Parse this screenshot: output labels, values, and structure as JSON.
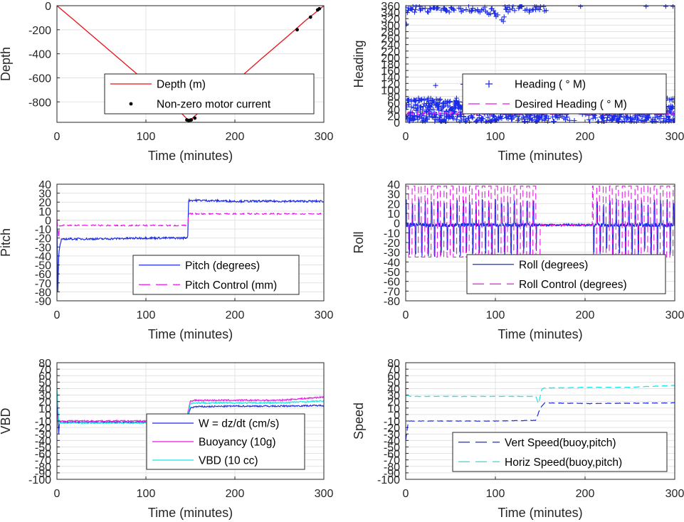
{
  "window_title": "",
  "chart_data": [
    {
      "type": "line",
      "xlabel": "Time (minutes)",
      "ylabel": "Depth",
      "xlim": [
        0,
        300
      ],
      "ylim": [
        -970,
        0
      ],
      "xticks": [
        0,
        100,
        200,
        300
      ],
      "yticks": [
        0,
        -200,
        -400,
        -600,
        -800
      ],
      "grid": true,
      "legend": "center-bottom",
      "series": [
        {
          "name": "Depth (m)",
          "style": "line",
          "color": "#e8131b",
          "x": [
            0,
            20,
            50,
            80,
            110,
            130,
            146,
            150,
            170,
            200,
            230,
            260,
            280,
            296,
            300
          ],
          "y": [
            0,
            -125,
            -315,
            -505,
            -695,
            -820,
            -940,
            -950,
            -820,
            -635,
            -440,
            -250,
            -120,
            -25,
            0
          ]
        },
        {
          "name": "Non-zero motor current",
          "style": "dots",
          "color": "#000000",
          "x": [
            146,
            148,
            150,
            151,
            155,
            270,
            285,
            293,
            295
          ],
          "y": [
            -950,
            -955,
            -952,
            -950,
            -935,
            -200,
            -95,
            -35,
            -25
          ]
        }
      ]
    },
    {
      "type": "scatter",
      "xlabel": "Time (minutes)",
      "ylabel": "Heading",
      "xlim": [
        0,
        300
      ],
      "ylim": [
        0,
        360
      ],
      "xticks": [
        0,
        100,
        200,
        300
      ],
      "yticks": [
        0,
        20,
        40,
        60,
        80,
        100,
        120,
        140,
        160,
        180,
        200,
        220,
        240,
        260,
        280,
        300,
        320,
        340,
        360
      ],
      "grid": true,
      "legend": "right",
      "series": [
        {
          "name": "Heading ( ° M)",
          "style": "plus",
          "color": "#1b2be6"
        },
        {
          "name": "Desired Heading ( ° M)",
          "style": "dash",
          "color": "#e619e6",
          "x": [
            0,
            300
          ],
          "y": [
            28,
            28
          ]
        }
      ]
    },
    {
      "type": "line",
      "xlabel": "Time (minutes)",
      "ylabel": "Pitch",
      "xlim": [
        0,
        300
      ],
      "ylim": [
        -90,
        40
      ],
      "xticks": [
        0,
        100,
        200,
        300
      ],
      "yticks": [
        40,
        30,
        20,
        10,
        0,
        -10,
        -20,
        -30,
        -40,
        -50,
        -60,
        -70,
        -80,
        -90
      ],
      "grid": true,
      "legend": "bottom-right",
      "series": [
        {
          "name": "Pitch (degrees)",
          "style": "line",
          "color": "#1b2be6",
          "x": [
            0,
            1,
            2,
            3,
            5,
            10,
            50,
            100,
            145,
            147,
            148,
            160,
            200,
            250,
            300
          ],
          "y": [
            0,
            -80,
            -40,
            -30,
            -22,
            -21,
            -21,
            -20,
            -20,
            -18,
            22,
            22,
            21,
            21,
            21
          ]
        },
        {
          "name": "Pitch Control (mm)",
          "style": "dash",
          "color": "#e619e6",
          "x": [
            0,
            2,
            3,
            147,
            148,
            300
          ],
          "y": [
            0,
            -20,
            -6,
            -6,
            7,
            7
          ]
        }
      ]
    },
    {
      "type": "line",
      "xlabel": "Time (minutes)",
      "ylabel": "Roll",
      "xlim": [
        0,
        300
      ],
      "ylim": [
        -80,
        40
      ],
      "xticks": [
        0,
        100,
        200,
        300
      ],
      "yticks": [
        40,
        30,
        20,
        10,
        0,
        -10,
        -20,
        -30,
        -40,
        -50,
        -60,
        -70,
        -80
      ],
      "grid": true,
      "legend": "bottom-right",
      "series": [
        {
          "name": "Roll (degrees)",
          "style": "line",
          "color": "#1b2be6"
        },
        {
          "name": "Roll Control (degrees)",
          "style": "dash",
          "color": "#e619e6"
        }
      ]
    },
    {
      "type": "line",
      "xlabel": "Time (minutes)",
      "ylabel": "VBD",
      "xlim": [
        0,
        300
      ],
      "ylim": [
        -100,
        80
      ],
      "xticks": [
        0,
        100,
        200,
        300
      ],
      "yticks": [
        80,
        70,
        60,
        50,
        40,
        30,
        20,
        10,
        0,
        -10,
        -20,
        -30,
        -40,
        -50,
        -60,
        -70,
        -80,
        -90,
        -100
      ],
      "grid": true,
      "legend": "bottom-center",
      "series": [
        {
          "name": "W = dz/dt (cm/s)",
          "style": "line",
          "color": "#1b2be6",
          "x": [
            0,
            2,
            3,
            5,
            20,
            145,
            150,
            155,
            200,
            250,
            300
          ],
          "y": [
            20,
            -30,
            -10,
            -12,
            -12,
            -12,
            10,
            12,
            13,
            13,
            14
          ]
        },
        {
          "name": "Buoyancy (10g)",
          "style": "line",
          "color": "#e619e6",
          "x": [
            0,
            2,
            3,
            5,
            145,
            150,
            155,
            250,
            300
          ],
          "y": [
            0,
            -10,
            -10,
            -10,
            -10,
            20,
            22,
            22,
            27
          ]
        },
        {
          "name": "VBD (10 cc)",
          "style": "line",
          "color": "#19e6e6",
          "x": [
            0,
            2,
            3,
            5,
            145,
            150,
            155,
            250,
            300
          ],
          "y": [
            40,
            -10,
            -13,
            -13,
            -13,
            17,
            18,
            18,
            21
          ]
        }
      ]
    },
    {
      "type": "line",
      "xlabel": "Time (minutes)",
      "ylabel": "Speed",
      "xlim": [
        0,
        300
      ],
      "ylim": [
        -100,
        80
      ],
      "xticks": [
        0,
        100,
        200,
        300
      ],
      "yticks": [
        80,
        70,
        60,
        50,
        40,
        30,
        20,
        10,
        0,
        -10,
        -20,
        -30,
        -40,
        -50,
        -60,
        -70,
        -80,
        -90,
        -100
      ],
      "grid": true,
      "legend": "bottom-right",
      "series": [
        {
          "name": "Vert Speed(buoy,pitch)",
          "style": "dash",
          "color": "#1b2be6",
          "x": [
            0,
            3,
            5,
            20,
            100,
            145,
            150,
            155,
            200,
            300
          ],
          "y": [
            -40,
            -10,
            -10,
            -10,
            -10,
            -9,
            10,
            18,
            17,
            18
          ]
        },
        {
          "name": "Horiz Speed(buoy,pitch)",
          "style": "dash",
          "color": "#19e6e6",
          "x": [
            0,
            3,
            5,
            20,
            145,
            148,
            152,
            155,
            200,
            250,
            300
          ],
          "y": [
            30,
            30,
            28,
            28,
            28,
            17,
            40,
            41,
            42,
            42,
            45
          ]
        }
      ]
    }
  ]
}
